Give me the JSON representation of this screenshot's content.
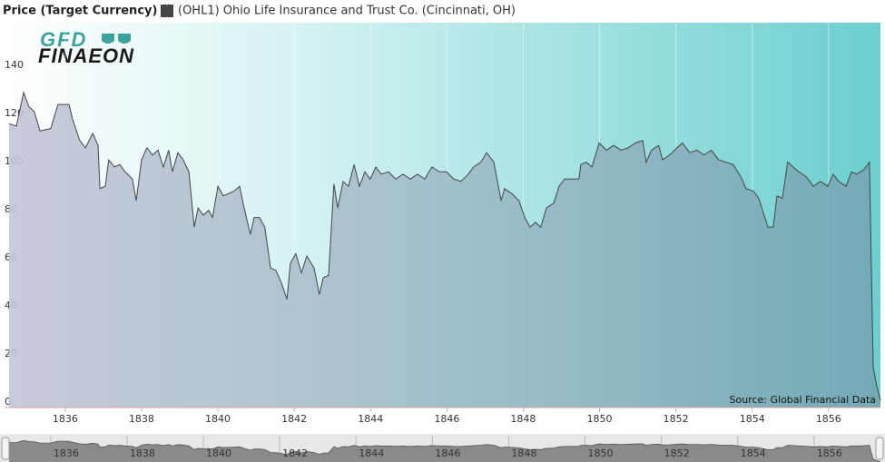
{
  "chart_data": {
    "type": "area",
    "title": "Price (Target Currency)",
    "logo": [
      "GFD",
      "FINAEON"
    ],
    "source": "Source: Global Financial Data",
    "x": [
      1834.41,
      1834.53,
      1834.72,
      1834.91,
      1835.05,
      1835.19,
      1835.34,
      1835.62,
      1835.81,
      1836.0,
      1836.1,
      1836.19,
      1836.38,
      1836.53,
      1836.72,
      1836.86,
      1836.91,
      1837.05,
      1837.14,
      1837.29,
      1837.43,
      1837.57,
      1837.76,
      1837.86,
      1838.0,
      1838.14,
      1838.29,
      1838.43,
      1838.57,
      1838.71,
      1838.81,
      1838.95,
      1839.09,
      1839.24,
      1839.38,
      1839.48,
      1839.62,
      1839.76,
      1839.86,
      1840.0,
      1840.14,
      1840.28,
      1840.43,
      1840.57,
      1840.66,
      1840.85,
      1840.95,
      1841.09,
      1841.23,
      1841.38,
      1841.52,
      1841.66,
      1841.81,
      1841.9,
      1842.04,
      1842.19,
      1842.33,
      1842.52,
      1842.66,
      1842.76,
      1842.9,
      1843.04,
      1843.14,
      1843.28,
      1843.42,
      1843.57,
      1843.71,
      1843.85,
      1843.99,
      1844.14,
      1844.28,
      1844.47,
      1844.66,
      1844.85,
      1845.04,
      1845.23,
      1845.42,
      1845.61,
      1845.8,
      1845.99,
      1846.18,
      1846.37,
      1846.56,
      1846.7,
      1846.89,
      1847.04,
      1847.23,
      1847.42,
      1847.51,
      1847.7,
      1847.89,
      1848.04,
      1848.18,
      1848.32,
      1848.46,
      1848.61,
      1848.8,
      1848.94,
      1849.08,
      1849.27,
      1849.46,
      1849.51,
      1849.65,
      1849.8,
      1849.99,
      1850.18,
      1850.37,
      1850.56,
      1850.75,
      1850.94,
      1851.13,
      1851.22,
      1851.36,
      1851.55,
      1851.65,
      1851.84,
      1852.03,
      1852.17,
      1852.36,
      1852.55,
      1852.74,
      1852.93,
      1853.12,
      1853.31,
      1853.5,
      1853.7,
      1853.84,
      1854.03,
      1854.17,
      1854.31,
      1854.41,
      1854.55,
      1854.65,
      1854.79,
      1854.93,
      1855.07,
      1855.22,
      1855.41,
      1855.6,
      1855.79,
      1855.98,
      1856.12,
      1856.27,
      1856.46,
      1856.6,
      1856.74,
      1856.93,
      1857.07,
      1857.17,
      1857.26,
      1857.36
    ],
    "series": [
      {
        "name": "(OHL1) Ohio Life Insurance and Trust Co. (Cincinnati, OH)",
        "color": "#444444",
        "values": [
          111,
          118,
          117,
          131,
          125,
          123,
          115,
          116,
          126,
          126,
          126,
          120,
          111,
          108,
          114,
          109,
          91,
          92,
          103,
          100,
          101,
          98,
          95,
          86,
          103,
          108,
          105,
          107,
          100,
          107,
          98,
          106,
          103,
          98,
          75,
          83,
          80,
          82,
          79,
          92,
          88,
          89,
          90,
          92,
          85,
          72,
          79,
          79,
          75,
          58,
          57,
          52,
          45,
          60,
          64,
          56,
          63,
          58,
          47,
          54,
          55,
          93,
          83,
          94,
          92,
          101,
          92,
          98,
          95,
          100,
          97,
          98,
          95,
          97,
          95,
          97,
          95,
          100,
          98,
          98,
          95,
          94,
          97,
          100,
          102,
          106,
          102,
          86,
          91,
          89,
          86,
          79,
          75,
          77,
          75,
          83,
          85,
          92,
          95,
          95,
          95,
          101,
          102,
          100,
          110,
          107,
          109,
          107,
          108,
          110,
          111,
          102,
          107,
          109,
          103,
          105,
          108,
          110,
          106,
          107,
          105,
          107,
          103,
          102,
          101,
          96,
          91,
          90,
          87,
          80,
          75,
          75,
          88,
          87,
          102,
          100,
          98,
          96,
          92,
          94,
          92,
          97,
          94,
          92,
          98,
          97,
          99,
          102,
          17,
          9,
          3
        ]
      }
    ],
    "xlim": [
      1834.41,
      1857.36
    ],
    "xticks": [
      1836,
      1838,
      1840,
      1842,
      1844,
      1846,
      1848,
      1850,
      1852,
      1854,
      1856
    ],
    "ylim": [
      0,
      160
    ],
    "yticks": [
      0,
      20,
      40,
      60,
      80,
      100,
      120,
      140
    ],
    "grid": true,
    "navigator": true
  }
}
